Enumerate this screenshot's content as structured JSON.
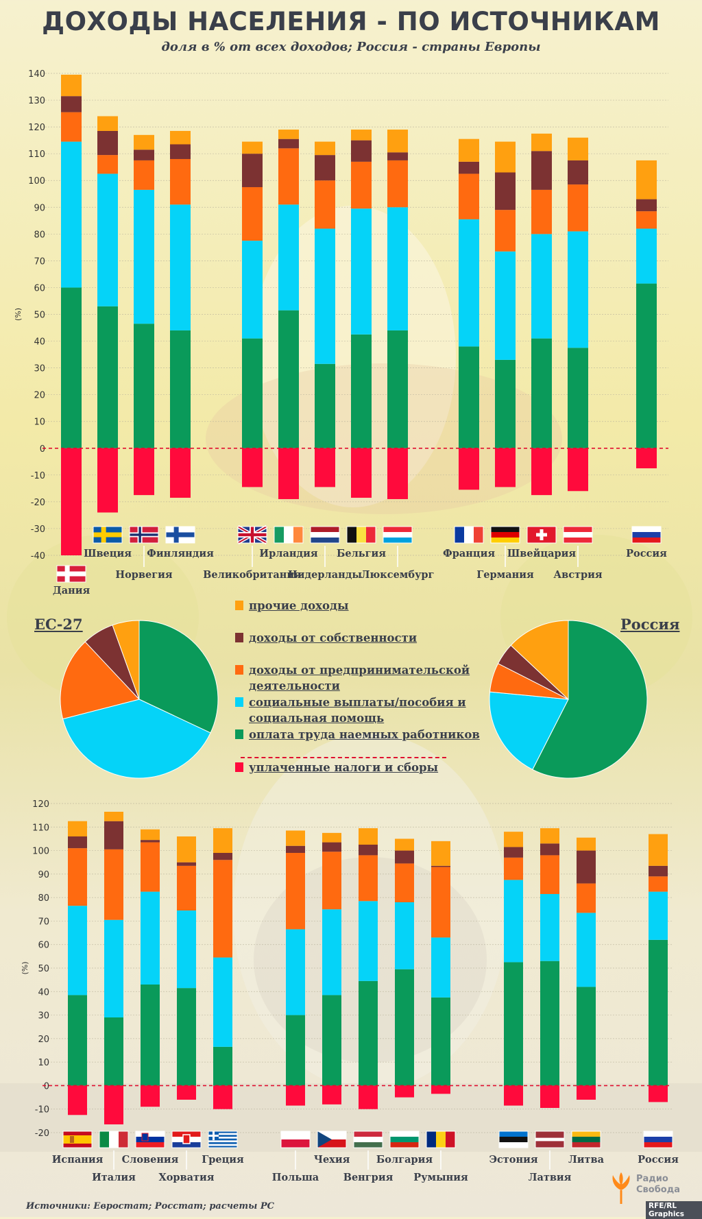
{
  "title": "ДОХОДЫ НАСЕЛЕНИЯ - ПО ИСТОЧНИКАМ",
  "subtitle": "доля в % от всех доходов; Россия - страны Европы",
  "colors": {
    "other": "#ffa010",
    "property": "#7c3232",
    "business": "#ff6a10",
    "social": "#05d3f8",
    "wages": "#0a9a5a",
    "taxes": "#ff0a3c"
  },
  "legend": [
    {
      "key": "other",
      "label": "прочие доходы"
    },
    {
      "key": "property",
      "label": "доходы от собственности"
    },
    {
      "key": "business",
      "label": "доходы от предпринимательской деятельности"
    },
    {
      "key": "social",
      "label": "социальные выплаты/пособия и социальная помощь"
    },
    {
      "key": "wages",
      "label": "оплата труда наемных работников"
    },
    {
      "key": "taxes",
      "label": "уплаченные налоги и сборы"
    }
  ],
  "pies": {
    "eu": {
      "title": "ЕС-27",
      "slices": [
        {
          "key": "wages",
          "value": 32
        },
        {
          "key": "social",
          "value": 39
        },
        {
          "key": "business",
          "value": 17
        },
        {
          "key": "property",
          "value": 6.5
        },
        {
          "key": "other",
          "value": 5.5
        }
      ]
    },
    "ru": {
      "title": "Россия",
      "slices": [
        {
          "key": "wages",
          "value": 57.5
        },
        {
          "key": "social",
          "value": 19
        },
        {
          "key": "business",
          "value": 6
        },
        {
          "key": "property",
          "value": 4.5
        },
        {
          "key": "other",
          "value": 13
        }
      ]
    }
  },
  "chart_data": [
    {
      "type": "bar",
      "stacked": true,
      "ylabel": "(%)",
      "ylim": [
        -40,
        140
      ],
      "yticks": [
        -40,
        -30,
        -20,
        -10,
        0,
        10,
        20,
        30,
        40,
        50,
        60,
        70,
        80,
        90,
        100,
        110,
        120,
        130,
        140
      ],
      "series_order": [
        "wages",
        "social",
        "business",
        "property",
        "other"
      ],
      "categories": [
        {
          "name": "Дания",
          "flag": "denmark",
          "wages": 60,
          "social": 54.5,
          "business": 11,
          "property": 6,
          "other": 8,
          "taxes": -40
        },
        {
          "name": "Швеция",
          "flag": "sweden",
          "wages": 53,
          "social": 49.5,
          "business": 7,
          "property": 9,
          "other": 5.5,
          "taxes": -24
        },
        {
          "name": "Норвегия",
          "flag": "norway",
          "wages": 46.5,
          "social": 50,
          "business": 11,
          "property": 4,
          "other": 5.5,
          "taxes": -17.5
        },
        {
          "name": "Финляндия",
          "flag": "finland",
          "wages": 44,
          "social": 47,
          "business": 17,
          "property": 5.5,
          "other": 5,
          "taxes": -18.5
        },
        {
          "name": "Великобритания",
          "flag": "uk",
          "wages": 41,
          "social": 36.5,
          "business": 20,
          "property": 12.5,
          "other": 4.5,
          "taxes": -14.5
        },
        {
          "name": "Ирландия",
          "flag": "ireland",
          "wages": 51.5,
          "social": 39.5,
          "business": 21,
          "property": 3.5,
          "other": 3.5,
          "taxes": -19
        },
        {
          "name": "Нидерланды",
          "flag": "netherlands",
          "wages": 31.5,
          "social": 50.5,
          "business": 18,
          "property": 9.5,
          "other": 5,
          "taxes": -14.5
        },
        {
          "name": "Бельгия",
          "flag": "belgium",
          "wages": 42.5,
          "social": 47,
          "business": 17.5,
          "property": 8,
          "other": 4,
          "taxes": -18.5
        },
        {
          "name": "Люксембург",
          "flag": "luxembourg",
          "wages": 44,
          "social": 46,
          "business": 17.5,
          "property": 3,
          "other": 8.5,
          "taxes": -19
        },
        {
          "name": "Франция",
          "flag": "france",
          "wages": 38,
          "social": 47.5,
          "business": 17,
          "property": 4.5,
          "other": 8.5,
          "taxes": -15.5
        },
        {
          "name": "Германия",
          "flag": "germany",
          "wages": 33,
          "social": 40.5,
          "business": 15.5,
          "property": 14,
          "other": 11.5,
          "taxes": -14.5
        },
        {
          "name": "Швейцария",
          "flag": "switzerland",
          "wages": 41,
          "social": 39,
          "business": 16.5,
          "property": 14.5,
          "other": 6.5,
          "taxes": -17.5
        },
        {
          "name": "Австрия",
          "flag": "austria",
          "wages": 37.5,
          "social": 43.5,
          "business": 17.5,
          "property": 9,
          "other": 8.5,
          "taxes": -16
        },
        {
          "name": "Россия",
          "flag": "russia",
          "wages": 61.5,
          "social": 20.5,
          "business": 6.5,
          "property": 4.5,
          "other": 14.5,
          "taxes": -7.5
        }
      ]
    },
    {
      "type": "bar",
      "stacked": true,
      "ylabel": "(%)",
      "ylim": [
        -20,
        120
      ],
      "yticks": [
        -20,
        -10,
        0,
        10,
        20,
        30,
        40,
        50,
        60,
        70,
        80,
        90,
        100,
        110,
        120
      ],
      "series_order": [
        "wages",
        "social",
        "business",
        "property",
        "other"
      ],
      "categories": [
        {
          "name": "Испания",
          "flag": "spain",
          "wages": 38.5,
          "social": 38,
          "business": 24.5,
          "property": 5,
          "other": 6.5,
          "taxes": -12.5
        },
        {
          "name": "Италия",
          "flag": "italy",
          "wages": 29,
          "social": 41.5,
          "business": 30,
          "property": 12,
          "other": 4,
          "taxes": -16.5
        },
        {
          "name": "Словения",
          "flag": "slovenia",
          "wages": 43,
          "social": 39.5,
          "business": 21,
          "property": 1,
          "other": 4.5,
          "taxes": -9
        },
        {
          "name": "Хорватия",
          "flag": "croatia",
          "wages": 41.5,
          "social": 33,
          "business": 19,
          "property": 1.5,
          "other": 11,
          "taxes": -6
        },
        {
          "name": "Греция",
          "flag": "greece",
          "wages": 16.5,
          "social": 38,
          "business": 41.5,
          "property": 3,
          "other": 10.5,
          "taxes": -10
        },
        {
          "name": "Польша",
          "flag": "poland",
          "wages": 30,
          "social": 36.5,
          "business": 32.5,
          "property": 3,
          "other": 6.5,
          "taxes": -8.5
        },
        {
          "name": "Чехия",
          "flag": "czechia",
          "wages": 38.5,
          "social": 36.5,
          "business": 24.5,
          "property": 4,
          "other": 4,
          "taxes": -8
        },
        {
          "name": "Венгрия",
          "flag": "hungary",
          "wages": 44.5,
          "social": 34,
          "business": 19.5,
          "property": 4.5,
          "other": 7,
          "taxes": -10
        },
        {
          "name": "Болгария",
          "flag": "bulgaria",
          "wages": 49.5,
          "social": 28.5,
          "business": 16.5,
          "property": 5.5,
          "other": 5,
          "taxes": -5
        },
        {
          "name": "Румыния",
          "flag": "romania",
          "wages": 37.5,
          "social": 25.5,
          "business": 30,
          "property": 0.5,
          "other": 10.5,
          "taxes": -3.5
        },
        {
          "name": "Эстония",
          "flag": "estonia",
          "wages": 52.5,
          "social": 35,
          "business": 9.5,
          "property": 4.5,
          "other": 6.5,
          "taxes": -8.5
        },
        {
          "name": "Латвия",
          "flag": "latvia",
          "wages": 53,
          "social": 28.5,
          "business": 16.5,
          "property": 5,
          "other": 6.5,
          "taxes": -9.5
        },
        {
          "name": "Литва",
          "flag": "lithuania",
          "wages": 42,
          "social": 31.5,
          "business": 12.5,
          "property": 14,
          "other": 5.5,
          "taxes": -6
        },
        {
          "name": "Россия",
          "flag": "russia",
          "wages": 62,
          "social": 20.5,
          "business": 6.5,
          "property": 4.5,
          "other": 13.5,
          "taxes": -7
        }
      ]
    }
  ],
  "source": "Источники: Евростат; Росстат; расчеты РС",
  "logo": {
    "line1": "Радио",
    "line2": "Свобода"
  },
  "credit": "RFE/RL Graphics"
}
